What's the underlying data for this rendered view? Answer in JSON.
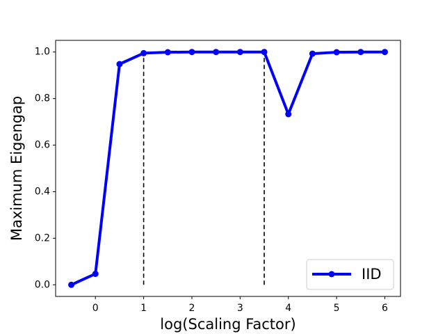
{
  "chart_data": {
    "type": "line",
    "x_label": "log(Scaling Factor)",
    "y_label": "Maximum Eigengap",
    "x": [
      -0.5,
      0,
      0.5,
      1,
      1.5,
      2,
      2.5,
      3,
      3.5,
      4,
      4.5,
      5,
      5.5,
      6
    ],
    "series": [
      {
        "name": "IID",
        "color": "#0000ff",
        "values": [
          0.0,
          0.047,
          0.948,
          0.995,
          0.999,
          1.0,
          1.0,
          1.0,
          1.0,
          0.733,
          0.993,
          0.999,
          1.0,
          1.0
        ]
      }
    ],
    "xlim": [
      -0.825,
      6.325
    ],
    "xticks": [
      0,
      1,
      2,
      3,
      4,
      5,
      6
    ],
    "ylim": [
      -0.05,
      1.05
    ],
    "yticks": [
      {
        "value": 0,
        "label": "0.0"
      },
      {
        "value": 0.2,
        "label": "0.2"
      },
      {
        "value": 0.4,
        "label": "0.4"
      },
      {
        "value": 0.6,
        "label": "0.6"
      },
      {
        "value": 0.8,
        "label": "0.8"
      },
      {
        "value": 1,
        "label": "1.0"
      }
    ],
    "vlines": [
      {
        "x": 1,
        "ymin": 0,
        "ymax": 1
      },
      {
        "x": 3.5,
        "ymin": 0,
        "ymax": 1
      }
    ],
    "grid": false,
    "legend": "lower right"
  }
}
